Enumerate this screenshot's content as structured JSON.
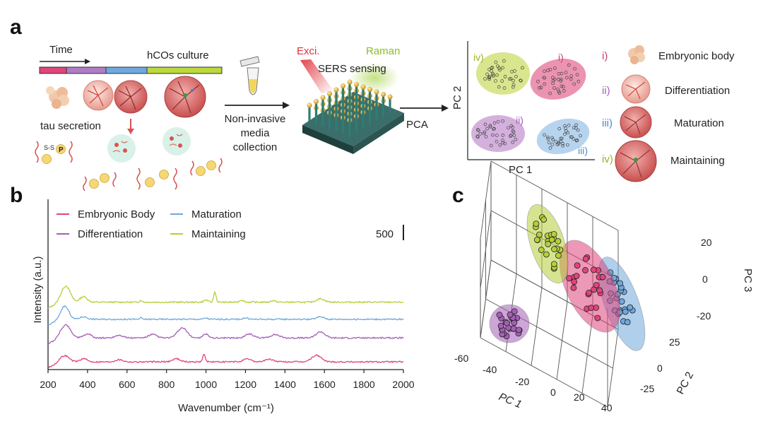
{
  "colors": {
    "embryonic": "#e0457b",
    "differentiation": "#a45fb5",
    "maturation": "#6fa8dc",
    "maintaining": "#b5cf3a",
    "exci": "#e0303a",
    "raman": "#9acd32",
    "arrow": "#d9534f",
    "tau_circle": "#f7d774"
  },
  "panel_a": {
    "letter": "a",
    "time_label": "Time",
    "culture_label": "hCOs culture",
    "tau_label": "tau secretion",
    "collection_label": [
      "Non-invasive",
      "media",
      "collection"
    ],
    "exci_label": "Exci.",
    "raman_label": "Raman",
    "sensing_label": "SERS sensing",
    "pca_label": "PCA",
    "tau_ss": "S-S",
    "tau_p": "P",
    "mini_pca": {
      "xlabel": "PC 1",
      "ylabel": "PC 2",
      "cluster_labels": [
        "iv)",
        "i)",
        "ii)",
        "iii)"
      ]
    },
    "legend": [
      {
        "num": "i)",
        "label": "Embryonic body"
      },
      {
        "num": "ii)",
        "label": "Differentiation"
      },
      {
        "num": "iii)",
        "label": "Maturation"
      },
      {
        "num": "iv)",
        "label": "Maintaining"
      }
    ]
  },
  "chart_data": [
    {
      "panel": "b",
      "type": "line",
      "title": "",
      "xlabel": "Wavenumber (cm⁻¹)",
      "ylabel": "Intensity (a.u.)",
      "xlim": [
        200,
        2000
      ],
      "x_ticks": [
        "200",
        "400",
        "600",
        "800",
        "1000",
        "1200",
        "1400",
        "1600",
        "1800",
        "2000"
      ],
      "scale_bar_label": "500",
      "scale_bar_value": 500,
      "legend": [
        "Embryonic Body",
        "Maturation",
        "Differentiation",
        "Maintaining"
      ],
      "series": [
        {
          "name": "Maintaining",
          "baseline": 2100,
          "peaks": [
            [
              290,
              520,
              22
            ],
            [
              380,
              180,
              18
            ],
            [
              670,
              60,
              6
            ],
            [
              1000,
              70,
              10
            ],
            [
              1045,
              330,
              6
            ],
            [
              1180,
              70,
              10
            ],
            [
              1340,
              50,
              12
            ],
            [
              1580,
              110,
              20
            ]
          ]
        },
        {
          "name": "Maturation",
          "baseline": 1550,
          "peaks": [
            [
              285,
              420,
              20
            ],
            [
              380,
              80,
              18
            ],
            [
              670,
              40,
              6
            ],
            [
              1000,
              40,
              10
            ],
            [
              1200,
              40,
              14
            ],
            [
              1580,
              80,
              18
            ]
          ]
        },
        {
          "name": "Differentiation",
          "baseline": 950,
          "peaks": [
            [
              290,
              420,
              24
            ],
            [
              400,
              130,
              18
            ],
            [
              560,
              90,
              20
            ],
            [
              730,
              110,
              20
            ],
            [
              880,
              320,
              24
            ],
            [
              1000,
              120,
              14
            ],
            [
              1220,
              130,
              20
            ],
            [
              1350,
              110,
              22
            ],
            [
              1580,
              200,
              22
            ]
          ]
        },
        {
          "name": "Embryonic Body",
          "baseline": 180,
          "peaks": [
            [
              285,
              200,
              22
            ],
            [
              380,
              100,
              18
            ],
            [
              560,
              70,
              20
            ],
            [
              850,
              100,
              20
            ],
            [
              990,
              230,
              7
            ],
            [
              1210,
              90,
              20
            ],
            [
              1320,
              80,
              22
            ],
            [
              1560,
              210,
              24
            ]
          ]
        }
      ]
    },
    {
      "panel": "c",
      "type": "scatter",
      "title": "",
      "xlabel": "PC 1",
      "ylabel": "PC 2",
      "zlabel": "PC 3",
      "x_ticks": [
        "-60",
        "-40",
        "-20",
        "0",
        "20",
        "40"
      ],
      "y_ticks": [
        "25",
        "0",
        "-25"
      ],
      "z_ticks": [
        "20",
        "0",
        "-20"
      ],
      "series": [
        {
          "name": "Maintaining",
          "center": [
            -12,
            8,
            22
          ]
        },
        {
          "name": "Embryonic Body",
          "center": [
            6,
            2,
            0
          ]
        },
        {
          "name": "Maturation",
          "center": [
            22,
            2,
            -15
          ]
        },
        {
          "name": "Differentiation",
          "center": [
            -46,
            -8,
            -22
          ]
        }
      ]
    }
  ]
}
